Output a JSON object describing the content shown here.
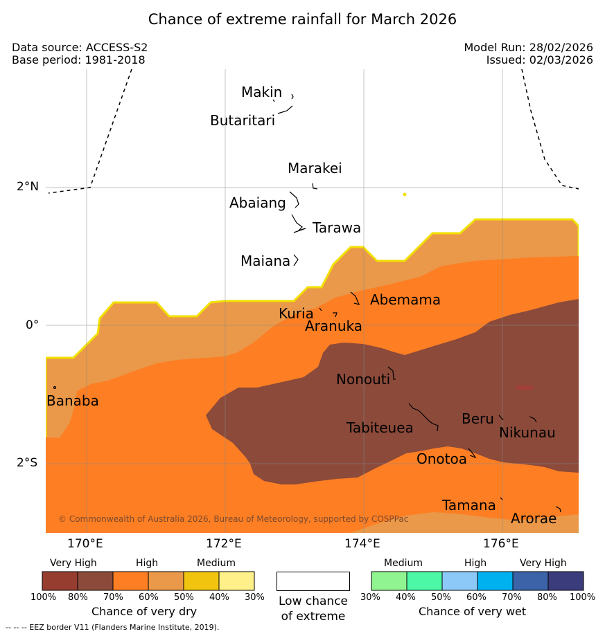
{
  "header": {
    "title": "Chance of extreme rainfall for March 2026",
    "data_source": "Data source: ACCESS-S2",
    "base_period": "Base period: 1981-2018",
    "model_run": "Model Run: 28/02/2026",
    "issued": "Issued: 02/03/2026"
  },
  "map": {
    "lon_range": [
      169.4,
      177.1
    ],
    "lat_range": [
      -3.0,
      3.7
    ],
    "lon_ticks": [
      {
        "value": 170,
        "label": "170°E"
      },
      {
        "value": 172,
        "label": "172°E"
      },
      {
        "value": 174,
        "label": "174°E"
      },
      {
        "value": 176,
        "label": "176°E"
      }
    ],
    "lat_ticks": [
      {
        "value": 2,
        "label": "2°N"
      },
      {
        "value": 0,
        "label": "0°"
      },
      {
        "value": -2,
        "label": "2°S"
      }
    ],
    "islands": [
      {
        "name": "Makin",
        "lon": 173.0,
        "lat": 3.37
      },
      {
        "name": "Butaritari",
        "lon": 172.9,
        "lat": 3.1
      },
      {
        "name": "Marakei",
        "lon": 173.3,
        "lat": 2.0
      },
      {
        "name": "Abaiang",
        "lon": 173.0,
        "lat": 1.85
      },
      {
        "name": "Tarawa",
        "lon": 173.1,
        "lat": 1.4
      },
      {
        "name": "Maiana",
        "lon": 173.0,
        "lat": 0.95
      },
      {
        "name": "Abemama",
        "lon": 173.9,
        "lat": 0.38
      },
      {
        "name": "Kuria",
        "lon": 173.4,
        "lat": 0.22
      },
      {
        "name": "Aranuka",
        "lon": 173.6,
        "lat": 0.18
      },
      {
        "name": "Nonouti",
        "lon": 174.4,
        "lat": -0.7
      },
      {
        "name": "Banaba",
        "lon": 169.55,
        "lat": -0.88
      },
      {
        "name": "Tabiteuea",
        "lon": 174.9,
        "lat": -1.4
      },
      {
        "name": "Beru",
        "lon": 176.0,
        "lat": -1.35
      },
      {
        "name": "Nikunau",
        "lon": 176.45,
        "lat": -1.35
      },
      {
        "name": "Onotoa",
        "lon": 175.55,
        "lat": -1.85
      },
      {
        "name": "Tamana",
        "lon": 176.0,
        "lat": -2.5
      },
      {
        "name": "Arorae",
        "lon": 176.8,
        "lat": -2.65
      }
    ],
    "copyright": "© Commonwealth of Australia 2026, Bureau of Meteorology, supported by COSPPac"
  },
  "legend_dry": {
    "groups": [
      "Very High",
      "High",
      "Medium"
    ],
    "colors": [
      "#963d2f",
      "#8b4a3a",
      "#fd7e23",
      "#ea9849",
      "#f1c40f",
      "#fff08a"
    ],
    "ticks": [
      "100%",
      "80%",
      "70%",
      "60%",
      "50%",
      "40%",
      "30%"
    ],
    "caption": "Chance of very dry"
  },
  "legend_low": {
    "line1": "Low chance",
    "line2": "of extreme"
  },
  "legend_wet": {
    "groups": [
      "Medium",
      "High",
      "Very High"
    ],
    "colors": [
      "#90f590",
      "#4cf7a5",
      "#8cc8f8",
      "#00b1f0",
      "#3c62a8",
      "#3b3c7c"
    ],
    "ticks": [
      "30%",
      "40%",
      "50%",
      "60%",
      "70%",
      "80%",
      "100%"
    ],
    "caption": "Chance of very wet"
  },
  "footer": {
    "credit": "--  --  -- EEZ border V11 (Flanders Marine Institute, 2019)."
  },
  "colors": {
    "very_high_dry": "#8b4a3a",
    "high_dry": "#fd7e23",
    "medium_high_dry": "#ea9849",
    "medium_dry": "#f1c40f"
  }
}
